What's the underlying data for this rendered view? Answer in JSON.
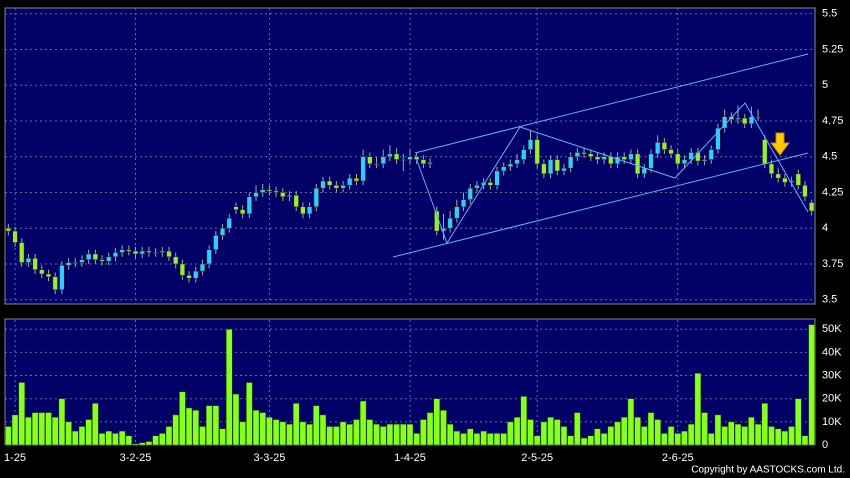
{
  "chart_data": [
    {
      "type": "candlestick",
      "categories": [
        null,
        "1-25",
        null,
        null,
        null,
        null,
        null,
        null,
        null,
        null,
        null,
        null,
        null,
        null,
        null,
        null,
        null,
        null,
        null,
        "3-2-25",
        null,
        null,
        null,
        null,
        null,
        null,
        null,
        null,
        null,
        null,
        null,
        null,
        null,
        null,
        null,
        null,
        null,
        null,
        null,
        "3-3-25",
        null,
        null,
        null,
        null,
        null,
        null,
        null,
        null,
        null,
        null,
        null,
        null,
        null,
        null,
        null,
        null,
        null,
        null,
        null,
        null,
        "1-4-25",
        null,
        null,
        null,
        null,
        null,
        null,
        null,
        null,
        null,
        null,
        null,
        null,
        null,
        null,
        null,
        null,
        null,
        null,
        "2-5-25",
        null,
        null,
        null,
        null,
        null,
        null,
        null,
        null,
        null,
        null,
        null,
        null,
        null,
        null,
        null,
        null,
        null,
        null,
        null,
        null,
        "2-6-25",
        null,
        null,
        null,
        null,
        null,
        null,
        null,
        null,
        null,
        null,
        null,
        null,
        null,
        null,
        null,
        null,
        null,
        null,
        null,
        null
      ],
      "up_color": "#33ccff",
      "down_color": "#99ee33",
      "open": [
        4.0,
        3.98,
        3.9,
        3.76,
        3.79,
        3.71,
        3.68,
        3.66,
        3.57,
        3.74,
        3.76,
        3.76,
        3.78,
        3.82,
        3.78,
        3.77,
        3.8,
        3.83,
        3.85,
        3.84,
        3.82,
        3.84,
        3.83,
        3.83,
        3.84,
        3.8,
        3.75,
        3.67,
        3.65,
        3.7,
        3.75,
        3.85,
        3.95,
        4.0,
        4.15,
        4.13,
        4.1,
        4.22,
        4.25,
        4.27,
        4.26,
        4.25,
        4.22,
        4.23,
        4.15,
        4.1,
        4.15,
        4.28,
        4.33,
        4.3,
        4.28,
        4.3,
        4.35,
        4.33,
        4.5,
        4.45,
        4.45,
        4.5,
        4.52,
        4.48,
        4.48,
        4.5,
        4.48,
        4.45,
        4.12,
        3.98,
        4.0,
        4.07,
        4.15,
        4.2,
        4.28,
        4.3,
        4.32,
        4.3,
        4.4,
        4.43,
        4.45,
        4.48,
        4.55,
        4.62,
        4.45,
        4.38,
        4.48,
        4.4,
        4.42,
        4.5,
        4.53,
        4.52,
        4.5,
        4.48,
        4.5,
        4.45,
        4.5,
        4.48,
        4.52,
        4.38,
        4.42,
        4.52,
        4.6,
        4.55,
        4.52,
        4.45,
        4.48,
        4.53,
        4.47,
        4.48,
        4.55,
        4.7,
        4.78,
        4.76,
        4.77,
        4.73,
        4.78,
        4.62,
        4.45,
        4.38,
        4.35,
        4.32,
        4.38,
        4.3,
        4.18
      ],
      "high": [
        4.03,
        4.01,
        3.93,
        3.82,
        3.82,
        3.74,
        3.71,
        3.69,
        3.77,
        3.79,
        3.79,
        3.81,
        3.85,
        3.85,
        3.81,
        3.83,
        3.86,
        3.88,
        3.88,
        3.87,
        3.87,
        3.87,
        3.86,
        3.87,
        3.87,
        3.83,
        3.78,
        3.7,
        3.73,
        3.78,
        3.88,
        3.98,
        4.03,
        4.1,
        4.18,
        4.16,
        4.25,
        4.3,
        4.31,
        4.3,
        4.29,
        4.28,
        4.26,
        4.26,
        4.18,
        4.18,
        4.31,
        4.36,
        4.36,
        4.33,
        4.33,
        4.38,
        4.38,
        4.55,
        4.53,
        4.5,
        4.55,
        4.58,
        4.56,
        4.52,
        4.55,
        4.53,
        4.51,
        4.49,
        4.15,
        4.1,
        4.12,
        4.2,
        4.25,
        4.31,
        4.33,
        4.35,
        4.35,
        4.43,
        4.46,
        4.48,
        4.52,
        4.58,
        4.68,
        4.65,
        4.48,
        4.51,
        4.51,
        4.45,
        4.53,
        4.56,
        4.56,
        4.55,
        4.53,
        4.53,
        4.53,
        4.53,
        4.53,
        4.55,
        4.55,
        4.45,
        4.55,
        4.65,
        4.63,
        4.58,
        4.55,
        4.51,
        4.56,
        4.56,
        4.51,
        4.58,
        4.73,
        4.83,
        4.81,
        4.86,
        4.8,
        4.85,
        4.83,
        4.65,
        4.48,
        4.42,
        4.38,
        4.36,
        4.41,
        4.33,
        4.2
      ],
      "low": [
        3.95,
        3.87,
        3.73,
        3.73,
        3.68,
        3.65,
        3.63,
        3.54,
        3.54,
        3.71,
        3.73,
        3.73,
        3.75,
        3.75,
        3.74,
        3.74,
        3.77,
        3.8,
        3.81,
        3.79,
        3.79,
        3.8,
        3.8,
        3.8,
        3.77,
        3.72,
        3.64,
        3.62,
        3.62,
        3.67,
        3.72,
        3.82,
        3.92,
        3.97,
        4.1,
        4.07,
        4.07,
        4.19,
        4.22,
        4.23,
        4.22,
        4.19,
        4.19,
        4.12,
        4.07,
        4.07,
        4.12,
        4.25,
        4.27,
        4.25,
        4.25,
        4.27,
        4.3,
        4.3,
        4.42,
        4.42,
        4.42,
        4.47,
        4.45,
        4.4,
        4.45,
        4.45,
        4.42,
        4.42,
        3.95,
        3.92,
        3.97,
        4.04,
        4.12,
        4.17,
        4.25,
        4.27,
        4.27,
        4.27,
        4.37,
        4.4,
        4.42,
        4.45,
        4.52,
        4.42,
        4.35,
        4.35,
        4.37,
        4.37,
        4.39,
        4.47,
        4.49,
        4.47,
        4.45,
        4.45,
        4.42,
        4.42,
        4.45,
        4.45,
        4.35,
        4.35,
        4.39,
        4.49,
        4.52,
        4.49,
        4.42,
        4.42,
        4.45,
        4.44,
        4.44,
        4.45,
        4.52,
        4.67,
        4.73,
        4.73,
        4.7,
        4.7,
        4.75,
        4.42,
        4.35,
        4.32,
        4.29,
        4.29,
        4.27,
        4.19,
        4.09
      ],
      "close": [
        3.98,
        3.9,
        3.76,
        3.79,
        3.71,
        3.68,
        3.66,
        3.57,
        3.74,
        3.76,
        3.76,
        3.78,
        3.82,
        3.78,
        3.77,
        3.8,
        3.83,
        3.85,
        3.84,
        3.82,
        3.84,
        3.83,
        3.83,
        3.84,
        3.8,
        3.75,
        3.67,
        3.65,
        3.7,
        3.75,
        3.85,
        3.95,
        4.0,
        4.07,
        4.13,
        4.1,
        4.22,
        4.25,
        4.27,
        4.26,
        4.25,
        4.22,
        4.23,
        4.15,
        4.1,
        4.15,
        4.28,
        4.33,
        4.3,
        4.28,
        4.3,
        4.35,
        4.33,
        4.5,
        4.45,
        4.45,
        4.5,
        4.52,
        4.48,
        4.48,
        4.5,
        4.48,
        4.45,
        4.46,
        3.98,
        4.0,
        4.07,
        4.15,
        4.2,
        4.28,
        4.3,
        4.32,
        4.3,
        4.4,
        4.43,
        4.45,
        4.48,
        4.55,
        4.62,
        4.45,
        4.38,
        4.48,
        4.4,
        4.42,
        4.5,
        4.53,
        4.52,
        4.5,
        4.48,
        4.5,
        4.45,
        4.5,
        4.48,
        4.52,
        4.38,
        4.42,
        4.52,
        4.6,
        4.55,
        4.52,
        4.45,
        4.48,
        4.53,
        4.47,
        4.48,
        4.55,
        4.7,
        4.78,
        4.76,
        4.77,
        4.73,
        4.78,
        4.78,
        4.45,
        4.38,
        4.35,
        4.32,
        4.33,
        4.3,
        4.22,
        4.12
      ],
      "ylim": [
        3.47,
        5.54
      ],
      "yticks": [
        5.5,
        5.25,
        5,
        4.75,
        4.5,
        4.25,
        4,
        3.75,
        3.5
      ],
      "grid": true
    },
    {
      "type": "bar",
      "values": [
        8000,
        13000,
        27000,
        12000,
        14000,
        14000,
        14000,
        12000,
        20000,
        10000,
        6000,
        8000,
        11000,
        18000,
        5000,
        6000,
        5000,
        6000,
        4000,
        500,
        1000,
        1500,
        4000,
        5000,
        8000,
        13000,
        23000,
        16000,
        15000,
        8000,
        17000,
        17000,
        7000,
        50000,
        22000,
        10000,
        27000,
        15000,
        14000,
        12000,
        11000,
        10000,
        9000,
        18000,
        10000,
        9000,
        17000,
        13000,
        8000,
        8000,
        10000,
        9000,
        11000,
        19000,
        11000,
        9000,
        8000,
        9000,
        9000,
        9000,
        9000,
        5000,
        11000,
        14000,
        20000,
        15000,
        9000,
        6000,
        5000,
        7000,
        5000,
        6000,
        5000,
        5000,
        5000,
        10000,
        12000,
        21000,
        11000,
        4000,
        10000,
        12000,
        11000,
        8000,
        4000,
        14000,
        3000,
        4000,
        7000,
        5000,
        8000,
        10000,
        12000,
        20000,
        12000,
        8000,
        14000,
        11000,
        5000,
        8000,
        5000,
        6000,
        9000,
        31000,
        14000,
        5000,
        13000,
        8000,
        10000,
        9000,
        8000,
        12000,
        9000,
        18000,
        8000,
        7000,
        6000,
        8000,
        20000,
        4000,
        52000
      ],
      "color": "#88ff22",
      "ylim": [
        0,
        54000
      ],
      "yticks": [
        {
          "value": 50000,
          "label": "50K"
        },
        {
          "value": 40000,
          "label": "40K"
        },
        {
          "value": 30000,
          "label": "30K"
        },
        {
          "value": 20000,
          "label": "20K"
        },
        {
          "value": 10000,
          "label": "10K"
        },
        0
      ],
      "grid": true,
      "source": "Copyright by AASTOCKS.com Ltd."
    }
  ]
}
